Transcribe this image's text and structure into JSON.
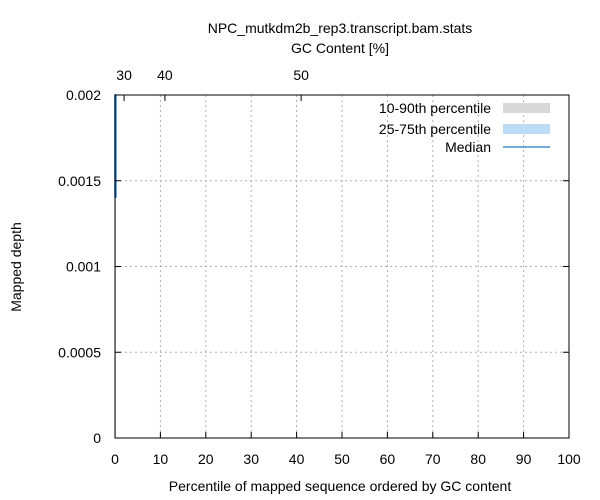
{
  "chart_data": {
    "type": "line",
    "title": "NPC_mutkdm2b_rep3.transcript.bam.stats",
    "subtitle": "GC Content [%]",
    "xlabel": "Percentile of mapped sequence ordered by GC content",
    "ylabel": "Mapped depth",
    "xlim": [
      0,
      100
    ],
    "ylim": [
      0,
      0.002
    ],
    "x_ticks": [
      0,
      10,
      20,
      30,
      40,
      50,
      60,
      70,
      80,
      90,
      100
    ],
    "x_tick_labels": [
      "0",
      "10",
      "20",
      "30",
      "40",
      "50",
      "60",
      "70",
      "80",
      "90",
      "100"
    ],
    "y_ticks": [
      0,
      0.0005,
      0.001,
      0.0015,
      0.002
    ],
    "y_tick_labels": [
      "0",
      "0.0005",
      "0.001",
      "0.0015",
      "0.002"
    ],
    "top_axis": {
      "label": "GC Content [%]",
      "ticks": [
        {
          "label": "30",
          "at_percentile": 2
        },
        {
          "label": "40",
          "at_percentile": 11
        },
        {
          "label": "50",
          "at_percentile": 41
        }
      ]
    },
    "grid": true,
    "legend_position": "top-right",
    "series": [
      {
        "name": "10-90th percentile",
        "kind": "band",
        "color": "#d9d9d9",
        "x": [
          0,
          0.2
        ],
        "low": [
          0,
          0
        ],
        "high": [
          0.002,
          0.002
        ]
      },
      {
        "name": "25-75th percentile",
        "kind": "band",
        "color": "#bcdcf5",
        "x": [
          0,
          0.2
        ],
        "low": [
          0,
          0
        ],
        "high": [
          0.002,
          0.002
        ]
      },
      {
        "name": "Median",
        "kind": "line",
        "color": "#1f78c8",
        "x": [
          0,
          0,
          0.2,
          0.2
        ],
        "y": [
          0.0014,
          0.002,
          0.002,
          0.0014
        ]
      }
    ]
  }
}
